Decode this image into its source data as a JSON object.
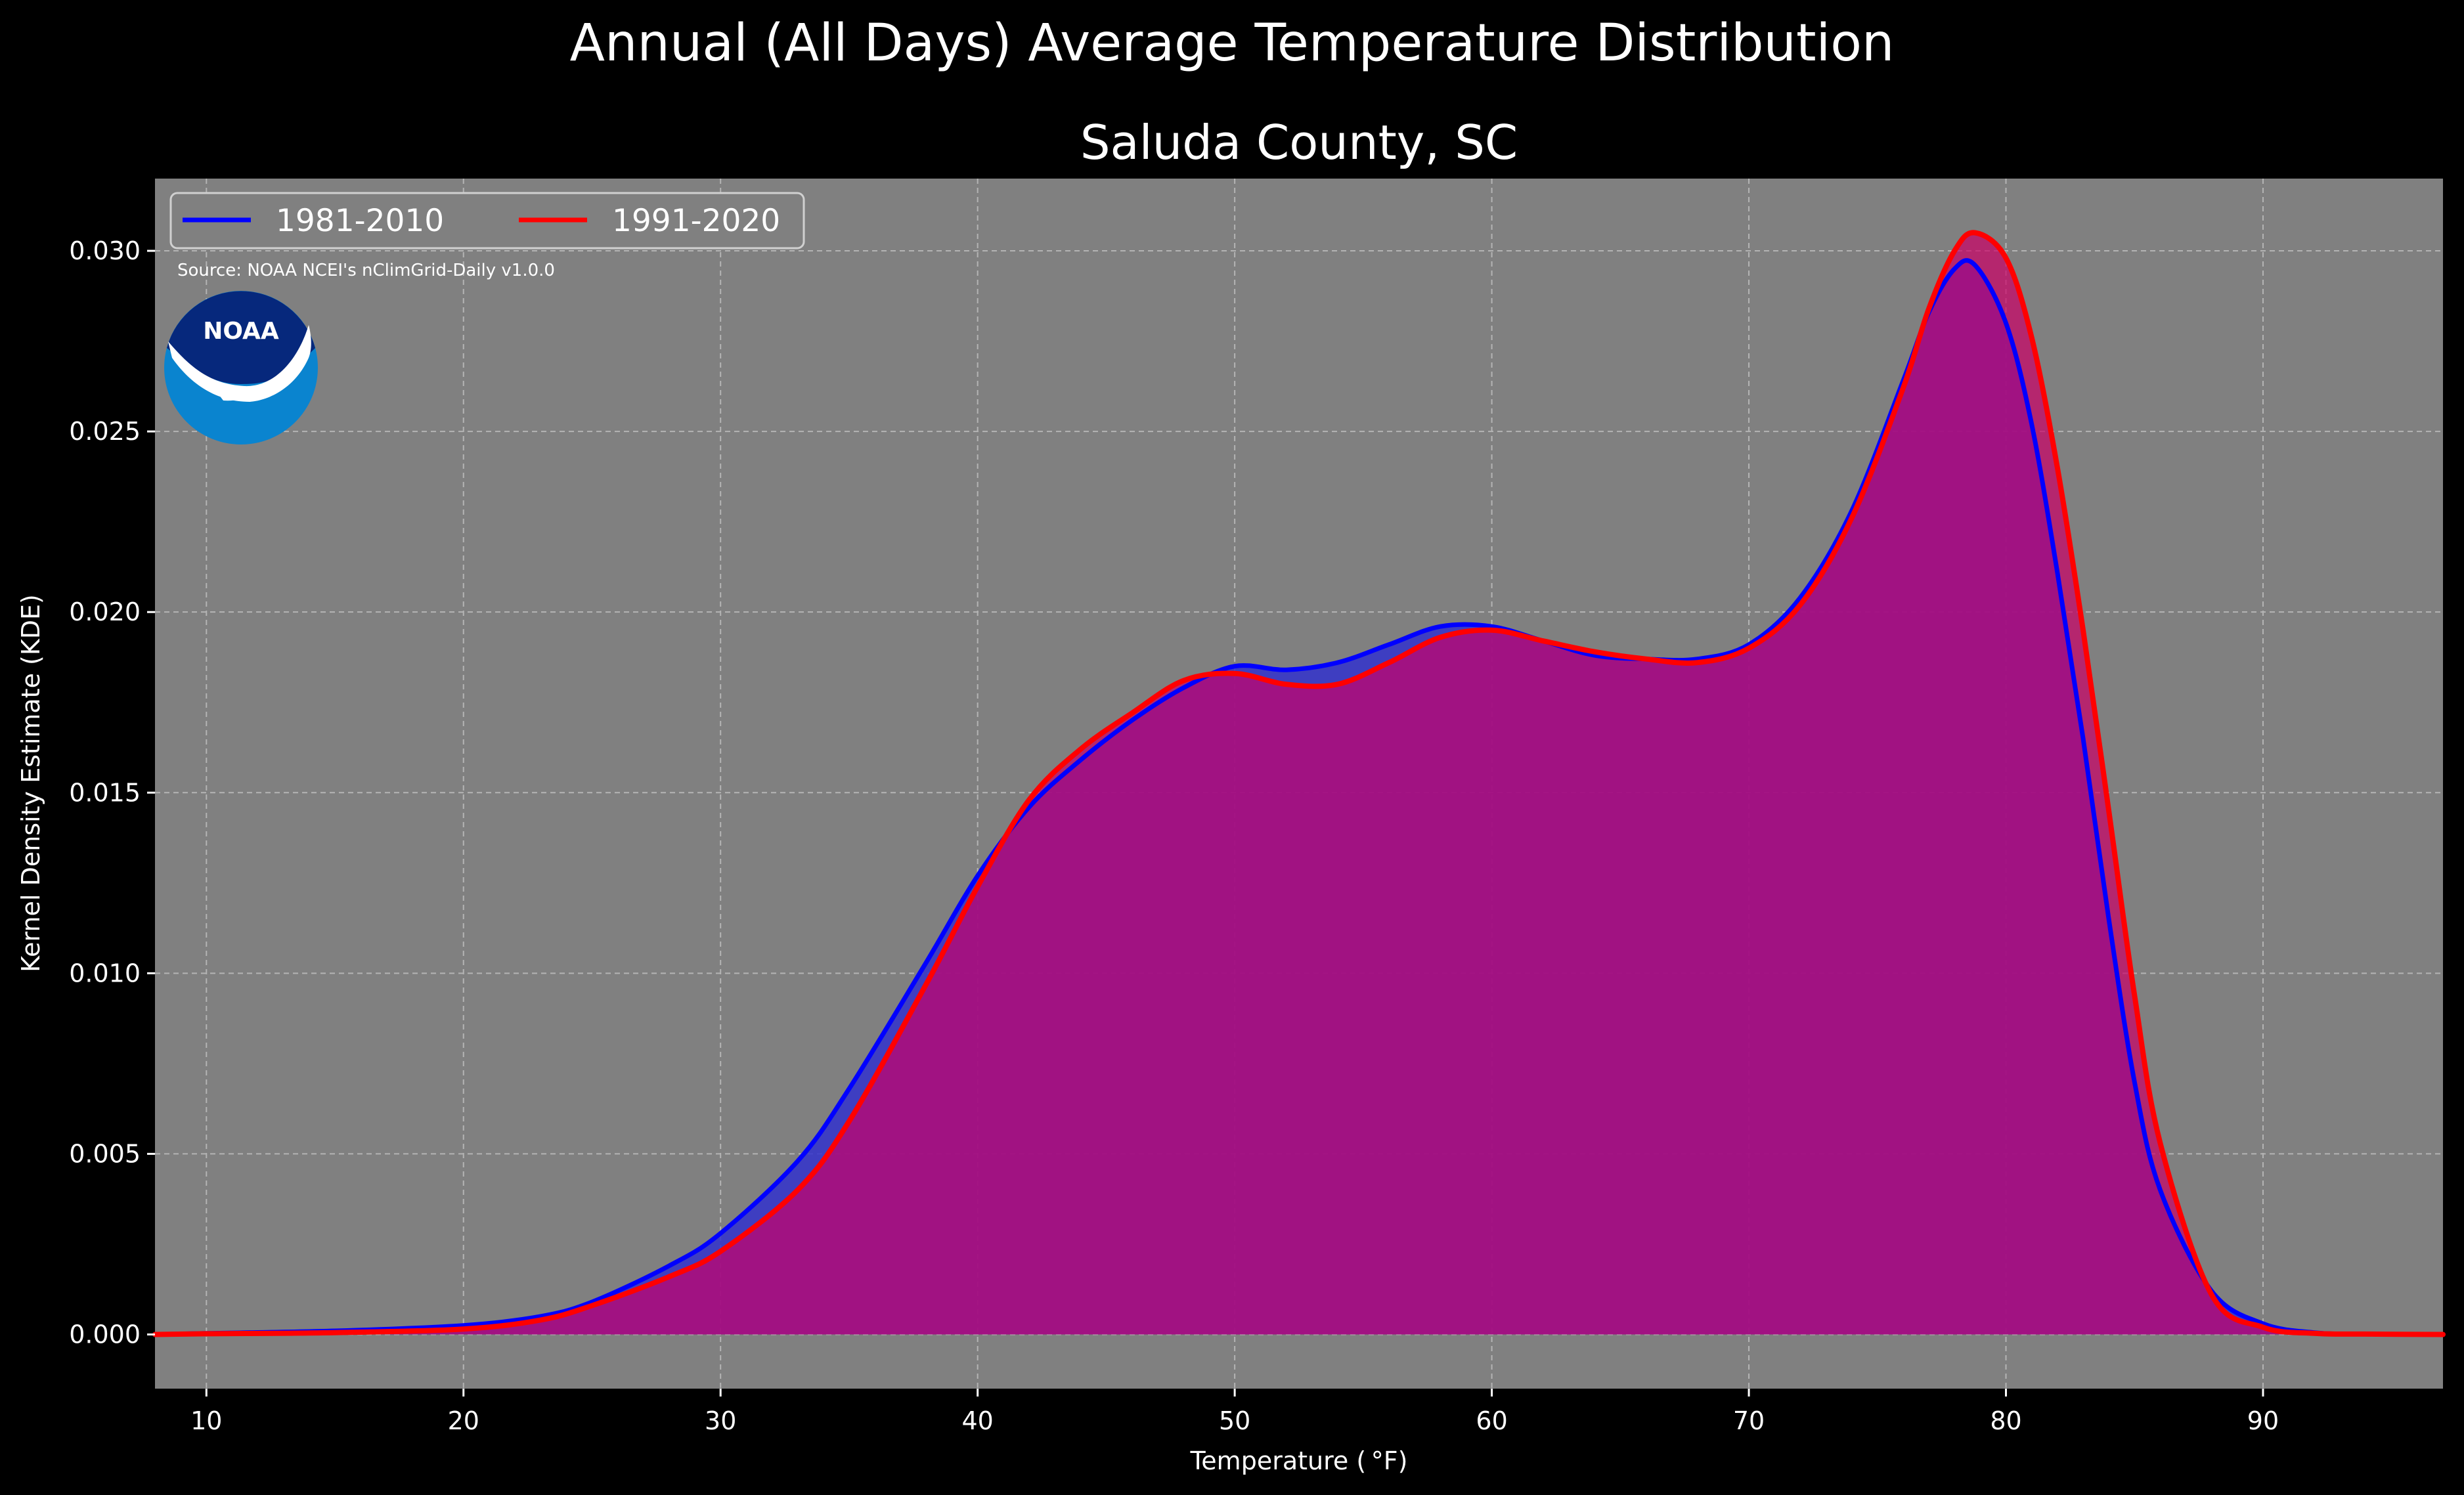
{
  "title": "Annual (All Days) Average Temperature Distribution",
  "subtitle": "Saluda County, SC",
  "source": "Source: NOAA NCEI's nClimGrid-Daily v1.0.0",
  "logo": {
    "text": "NOAA",
    "icon": "noaa-logo"
  },
  "chart_data": {
    "type": "area",
    "title": "Annual (All Days) Average Temperature Distribution",
    "subtitle": "Saluda County, SC",
    "xlabel": "Temperature ($^\\circ$F)",
    "xlabel_display": "Temperature ( °F)",
    "ylabel": "Kernel Density Estimate (KDE)",
    "xlim": [
      8,
      97
    ],
    "ylim": [
      -0.0015,
      0.032
    ],
    "xticks": [
      10,
      20,
      30,
      40,
      50,
      60,
      70,
      80,
      90
    ],
    "xtick_labels": [
      "10",
      "20",
      "30",
      "40",
      "50",
      "60",
      "70",
      "80",
      "90"
    ],
    "yticks": [
      0.0,
      0.005,
      0.01,
      0.015,
      0.02,
      0.025,
      0.03
    ],
    "ytick_labels": [
      "0.000",
      "0.005",
      "0.010",
      "0.015",
      "0.020",
      "0.025",
      "0.030"
    ],
    "grid": true,
    "legend_position": "top-left",
    "background_color": "#808080",
    "series": [
      {
        "name": "1981-2010",
        "color": "#0000ff",
        "fill": "#3333cc",
        "x": [
          8,
          10,
          15,
          20,
          23,
          25,
          28,
          30,
          33,
          35,
          38,
          40,
          42,
          44,
          46,
          48,
          50,
          52,
          54,
          56,
          58,
          60,
          62,
          64,
          66,
          68,
          70,
          72,
          74,
          76,
          77,
          78,
          78.8,
          80,
          81,
          82,
          83,
          84,
          85,
          86,
          88,
          90,
          92,
          94,
          97
        ],
        "y": [
          0.0,
          3e-05,
          0.0001,
          0.00025,
          0.0005,
          0.0009,
          0.0019,
          0.0028,
          0.0048,
          0.0068,
          0.0103,
          0.0127,
          0.0146,
          0.0159,
          0.017,
          0.0179,
          0.0185,
          0.0184,
          0.0186,
          0.0191,
          0.0196,
          0.0196,
          0.0192,
          0.0188,
          0.0187,
          0.0187,
          0.0191,
          0.0204,
          0.0228,
          0.0264,
          0.0283,
          0.0295,
          0.0296,
          0.028,
          0.0252,
          0.0211,
          0.0165,
          0.0115,
          0.007,
          0.004,
          0.0012,
          0.0003,
          5e-05,
          1e-05,
          0.0
        ]
      },
      {
        "name": "1991-2020",
        "color": "#ff0000",
        "fill": "#cc0066",
        "x": [
          8,
          10,
          15,
          20,
          23,
          25,
          28,
          30,
          33,
          35,
          38,
          40,
          42,
          44,
          46,
          48,
          50,
          52,
          54,
          56,
          58,
          60,
          62,
          64,
          66,
          68,
          70,
          72,
          74,
          76,
          77,
          78,
          78.8,
          80,
          81,
          82,
          83,
          84,
          85,
          86,
          88,
          90,
          92,
          94,
          97
        ],
        "y": [
          0.0,
          2e-05,
          5e-05,
          0.00015,
          0.0004,
          0.0008,
          0.0016,
          0.0023,
          0.004,
          0.0059,
          0.0097,
          0.0124,
          0.0148,
          0.0162,
          0.0172,
          0.0181,
          0.0183,
          0.018,
          0.018,
          0.0186,
          0.0193,
          0.0195,
          0.0192,
          0.0189,
          0.0187,
          0.0186,
          0.019,
          0.0202,
          0.0226,
          0.0262,
          0.0284,
          0.03,
          0.0305,
          0.0298,
          0.0276,
          0.024,
          0.0195,
          0.0145,
          0.0094,
          0.0053,
          0.0011,
          0.0002,
          3e-05,
          1e-05,
          0.0
        ]
      }
    ]
  }
}
